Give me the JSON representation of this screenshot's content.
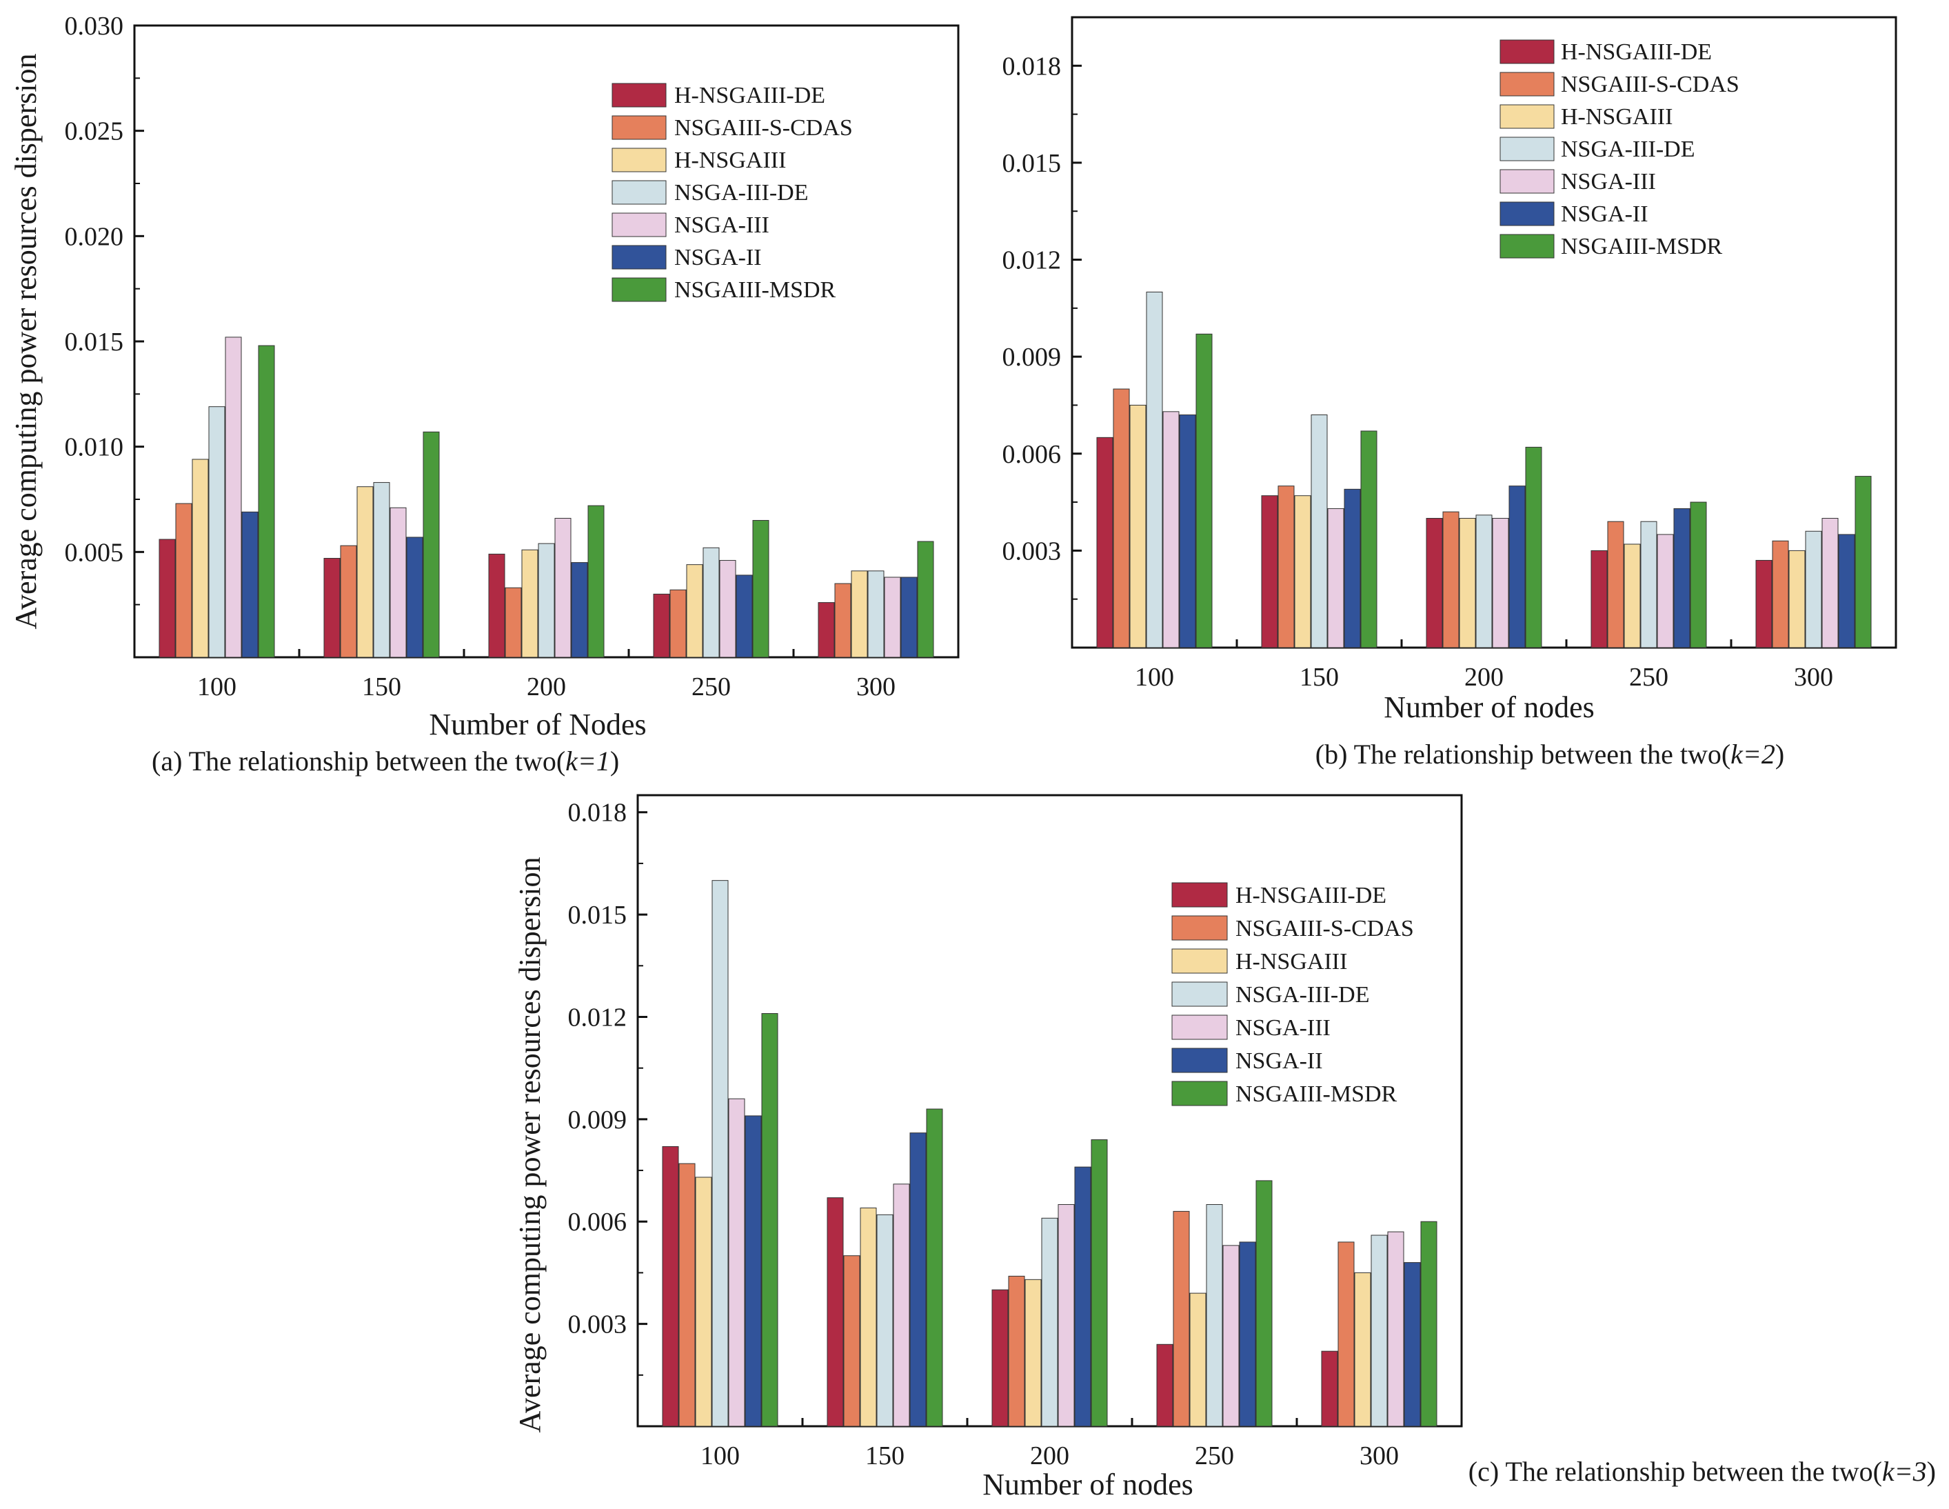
{
  "colors": {
    "H-NSGAIII-DE": "#b02a44",
    "NSGAIII-S-CDAS": "#e5805c",
    "H-NSGAIII": "#f6dca0",
    "NSGA-III-DE": "#cfe0e6",
    "NSGA-III": "#e9cde2",
    "NSGA-II": "#31539a",
    "NSGAIII-MSDR": "#4a9a3b"
  },
  "chart_data": [
    {
      "type": "bar",
      "panel": "a",
      "caption": {
        "prefix": "(a) The relationship between the two(",
        "k": "k=1",
        "suffix": ")"
      },
      "xlabel": "Number of Nodes",
      "ylabel": "Average computing power resources dispersion",
      "ylim": [
        0.0,
        0.03
      ],
      "yticks": [
        "0.005",
        "0.010",
        "0.015",
        "0.020",
        "0.025",
        "0.030"
      ],
      "legend_position": "top-right",
      "categories": [
        "100",
        "150",
        "200",
        "250",
        "300"
      ],
      "series": [
        {
          "name": "H-NSGAIII-DE",
          "values": [
            0.0056,
            0.0047,
            0.0049,
            0.003,
            0.0026
          ]
        },
        {
          "name": "NSGAIII-S-CDAS",
          "values": [
            0.0073,
            0.0053,
            0.0033,
            0.0032,
            0.0035
          ]
        },
        {
          "name": "H-NSGAIII",
          "values": [
            0.0094,
            0.0081,
            0.0051,
            0.0044,
            0.0041
          ]
        },
        {
          "name": "NSGA-III-DE",
          "values": [
            0.0119,
            0.0083,
            0.0054,
            0.0052,
            0.0041
          ]
        },
        {
          "name": "NSGA-III",
          "values": [
            0.0152,
            0.0071,
            0.0066,
            0.0046,
            0.0038
          ]
        },
        {
          "name": "NSGA-II",
          "values": [
            0.0069,
            0.0057,
            0.0045,
            0.0039,
            0.0038
          ]
        },
        {
          "name": "NSGAIII-MSDR",
          "values": [
            0.0148,
            0.0107,
            0.0072,
            0.0065,
            0.0055
          ]
        }
      ]
    },
    {
      "type": "bar",
      "panel": "b",
      "caption": {
        "prefix": "(b) The relationship between the two(",
        "k": "k=2",
        "suffix": ")"
      },
      "xlabel": "Number of nodes",
      "ylabel": "",
      "ylim": [
        0.0,
        0.0195
      ],
      "yticks": [
        "0.003",
        "0.006",
        "0.009",
        "0.012",
        "0.015",
        "0.018"
      ],
      "legend_position": "top-right",
      "categories": [
        "100",
        "150",
        "200",
        "250",
        "300"
      ],
      "series": [
        {
          "name": "H-NSGAIII-DE",
          "values": [
            0.0065,
            0.0047,
            0.004,
            0.003,
            0.0027
          ]
        },
        {
          "name": "NSGAIII-S-CDAS",
          "values": [
            0.008,
            0.005,
            0.0042,
            0.0039,
            0.0033
          ]
        },
        {
          "name": "H-NSGAIII",
          "values": [
            0.0075,
            0.0047,
            0.004,
            0.0032,
            0.003
          ]
        },
        {
          "name": "NSGA-III-DE",
          "values": [
            0.011,
            0.0072,
            0.0041,
            0.0039,
            0.0036
          ]
        },
        {
          "name": "NSGA-III",
          "values": [
            0.0073,
            0.0043,
            0.004,
            0.0035,
            0.004
          ]
        },
        {
          "name": "NSGA-II",
          "values": [
            0.0072,
            0.0049,
            0.005,
            0.0043,
            0.0035
          ]
        },
        {
          "name": "NSGAIII-MSDR",
          "values": [
            0.0097,
            0.0067,
            0.0062,
            0.0045,
            0.0053
          ]
        }
      ]
    },
    {
      "type": "bar",
      "panel": "c",
      "caption": {
        "prefix": "(c) The relationship between the two(",
        "k": "k=3",
        "suffix": ")"
      },
      "xlabel": "Number of nodes",
      "ylabel": "Average computing power resources dispersion",
      "ylim": [
        0.0,
        0.0185
      ],
      "yticks": [
        "0.003",
        "0.006",
        "0.009",
        "0.012",
        "0.015",
        "0.018"
      ],
      "legend_position": "right",
      "categories": [
        "100",
        "150",
        "200",
        "250",
        "300"
      ],
      "series": [
        {
          "name": "H-NSGAIII-DE",
          "values": [
            0.0082,
            0.0067,
            0.004,
            0.0024,
            0.0022
          ]
        },
        {
          "name": "NSGAIII-S-CDAS",
          "values": [
            0.0077,
            0.005,
            0.0044,
            0.0063,
            0.0054
          ]
        },
        {
          "name": "H-NSGAIII",
          "values": [
            0.0073,
            0.0064,
            0.0043,
            0.0039,
            0.0045
          ]
        },
        {
          "name": "NSGA-III-DE",
          "values": [
            0.016,
            0.0062,
            0.0061,
            0.0065,
            0.0056
          ]
        },
        {
          "name": "NSGA-III",
          "values": [
            0.0096,
            0.0071,
            0.0065,
            0.0053,
            0.0057
          ]
        },
        {
          "name": "NSGA-II",
          "values": [
            0.0091,
            0.0086,
            0.0076,
            0.0054,
            0.0048
          ]
        },
        {
          "name": "NSGAIII-MSDR",
          "values": [
            0.0121,
            0.0093,
            0.0084,
            0.0072,
            0.006
          ]
        }
      ]
    }
  ]
}
